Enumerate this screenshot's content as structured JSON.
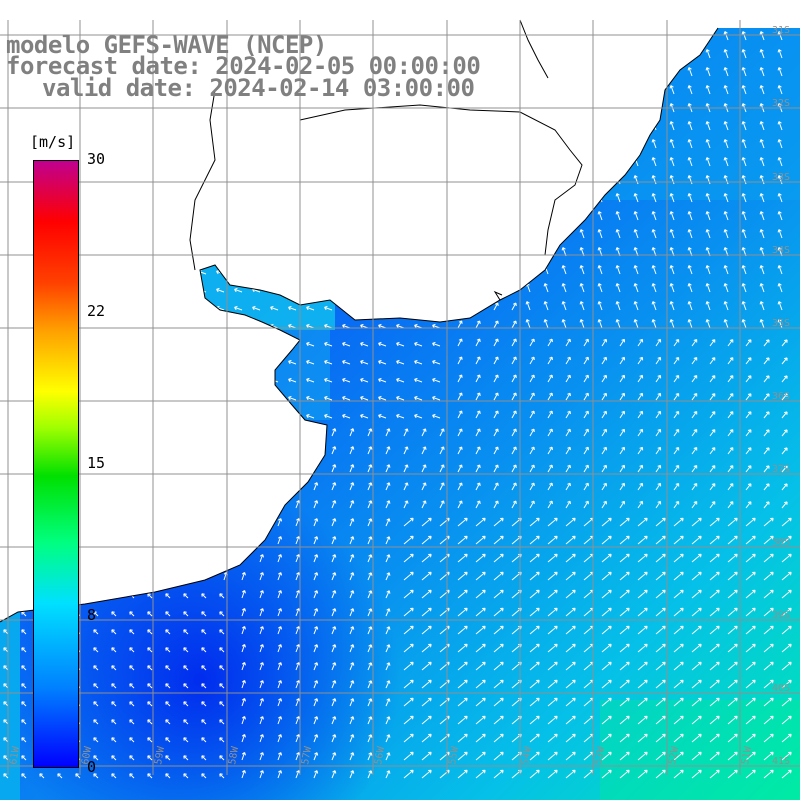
{
  "title": {
    "line1": "modelo GEFS-WAVE (NCEP)",
    "line2": "forecast date: 2024-02-05 00:00:00",
    "line3": "valid date: 2024-02-14 03:00:00"
  },
  "colorbar": {
    "unit": "[m/s]",
    "ticks": [
      "30",
      "22",
      "15",
      "8",
      "0"
    ],
    "tick_values": [
      30,
      22,
      15,
      8,
      0
    ],
    "min": 0,
    "max": 30,
    "colors": [
      "#0000ff",
      "#0080ff",
      "#00e0ff",
      "#00ff80",
      "#00e000",
      "#a0ff00",
      "#ffff00",
      "#ffa000",
      "#ff4000",
      "#ff0000",
      "#c00090"
    ]
  },
  "map": {
    "land_color": "#ffffff",
    "coastline_color": "#000000",
    "grid_color": "#909090",
    "lon_labels": [
      "61W",
      "60W",
      "59W",
      "58W",
      "57W",
      "56W",
      "55W",
      "54W",
      "53W",
      "52W",
      "51W"
    ],
    "lat_labels": [
      "31S",
      "32S",
      "33S",
      "34S",
      "35S",
      "36S",
      "37S",
      "38S",
      "39S",
      "40S",
      "41S"
    ],
    "field": "wind speed with direction arrows",
    "typical_speed_range_ms": [
      1,
      8
    ]
  }
}
